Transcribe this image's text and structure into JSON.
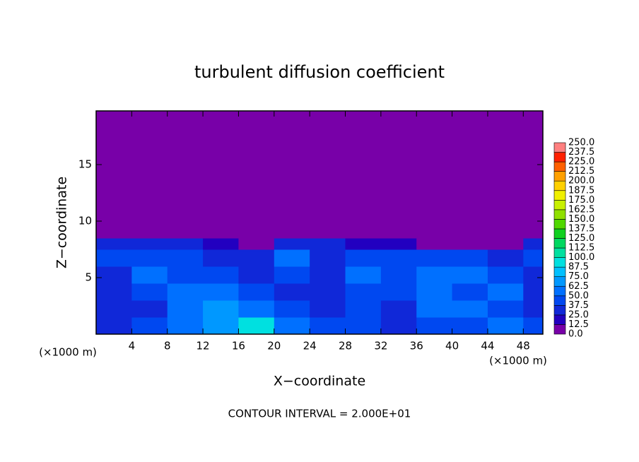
{
  "chart_data": {
    "type": "contour",
    "title": "turbulent diffusion coefficient",
    "xlabel": "X−coordinate",
    "ylabel": "Z−coordinate",
    "x_unit_label": "(×1000 m)",
    "y_unit_label": "(×1000 m)",
    "footer": "CONTOUR INTERVAL = 2.000E+01",
    "xlim": [
      0,
      50.2
    ],
    "ylim": [
      0,
      19.75
    ],
    "xticks": [
      4,
      8,
      12,
      16,
      20,
      24,
      28,
      32,
      36,
      40,
      44,
      48
    ],
    "yticks": [
      5,
      10,
      15
    ],
    "x_edges": [
      0,
      4,
      8,
      12,
      16,
      20,
      24,
      28,
      32,
      36,
      40,
      44,
      48,
      50.2
    ],
    "z_edges": [
      0,
      1.5,
      3,
      4.5,
      6,
      7.5,
      8.5,
      19.75
    ],
    "z": [
      [
        35,
        40,
        60,
        70,
        95,
        60,
        40,
        45,
        35,
        40,
        45,
        50,
        40
      ],
      [
        30,
        35,
        55,
        65,
        60,
        45,
        35,
        40,
        35,
        50,
        55,
        45,
        35
      ],
      [
        30,
        40,
        50,
        55,
        40,
        35,
        30,
        45,
        40,
        55,
        45,
        50,
        35
      ],
      [
        35,
        50,
        45,
        40,
        35,
        45,
        30,
        50,
        45,
        50,
        55,
        40,
        30
      ],
      [
        40,
        45,
        40,
        35,
        30,
        50,
        35,
        40,
        45,
        40,
        40,
        35,
        40
      ],
      [
        30,
        30,
        25,
        15,
        10,
        30,
        30,
        20,
        15,
        8,
        8,
        10,
        30
      ],
      [
        3,
        3,
        3,
        3,
        3,
        3,
        3,
        3,
        3,
        3,
        3,
        3,
        3
      ]
    ],
    "colorbar_levels": [
      {
        "value": 0,
        "label": "0.0"
      },
      {
        "value": 12.5,
        "label": "12.5"
      },
      {
        "value": 25,
        "label": "25.0"
      },
      {
        "value": 37.5,
        "label": "37.5"
      },
      {
        "value": 50,
        "label": "50.0"
      },
      {
        "value": 62.5,
        "label": "62.5"
      },
      {
        "value": 75,
        "label": "75.0"
      },
      {
        "value": 87.5,
        "label": "87.5"
      },
      {
        "value": 100,
        "label": "100.0"
      },
      {
        "value": 112.5,
        "label": "112.5"
      },
      {
        "value": 125,
        "label": "125.0"
      },
      {
        "value": 137.5,
        "label": "137.5"
      },
      {
        "value": 150,
        "label": "150.0"
      },
      {
        "value": 162.5,
        "label": "162.5"
      },
      {
        "value": 175,
        "label": "175.0"
      },
      {
        "value": 187.5,
        "label": "187.5"
      },
      {
        "value": 200,
        "label": "200.0"
      },
      {
        "value": 212.5,
        "label": "212.5"
      },
      {
        "value": 225,
        "label": "225.0"
      },
      {
        "value": 237.5,
        "label": "237.5"
      },
      {
        "value": 250,
        "label": "250.0"
      }
    ],
    "colors": [
      "#7800a8",
      "#2200c0",
      "#1028d8",
      "#0048f0",
      "#0070ff",
      "#0098ff",
      "#00c0ff",
      "#00e0e0",
      "#00e0a0",
      "#00d860",
      "#10d020",
      "#50d800",
      "#90e000",
      "#c8f000",
      "#f0f000",
      "#ffd000",
      "#ffa000",
      "#ff6000",
      "#ff2000",
      "#ff8080"
    ]
  }
}
